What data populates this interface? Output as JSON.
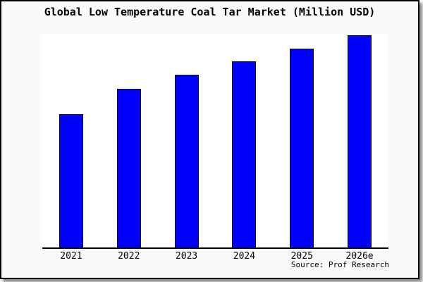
{
  "title": "Global Low Temperature Coal Tar Market (Million USD)",
  "source": "Source: Prof Research",
  "colors": {
    "bar_fill": "#0000fd",
    "bar_border": "#000000",
    "canvas_background": "#fafafa",
    "plot_background": "#ffffff",
    "axis": "#000000",
    "frame_border": "#000000",
    "title_text": "#000000"
  },
  "chart_data": {
    "type": "bar",
    "title": "Global Low Temperature Coal Tar Market (Million USD)",
    "categories": [
      "2021",
      "2022",
      "2023",
      "2024",
      "2025",
      "2026e"
    ],
    "values": [
      62.8,
      74.8,
      81.4,
      87.7,
      93.7,
      100
    ],
    "value_note": "No y-axis tick labels shown in the chart; values are relative index estimates of bar heights with 2026e = 100",
    "xlabel": "",
    "ylabel": "",
    "ylim": [
      0,
      100.7
    ],
    "grid": false,
    "legend": false,
    "y_axis_visible": false,
    "source": "Source: Prof Research"
  }
}
